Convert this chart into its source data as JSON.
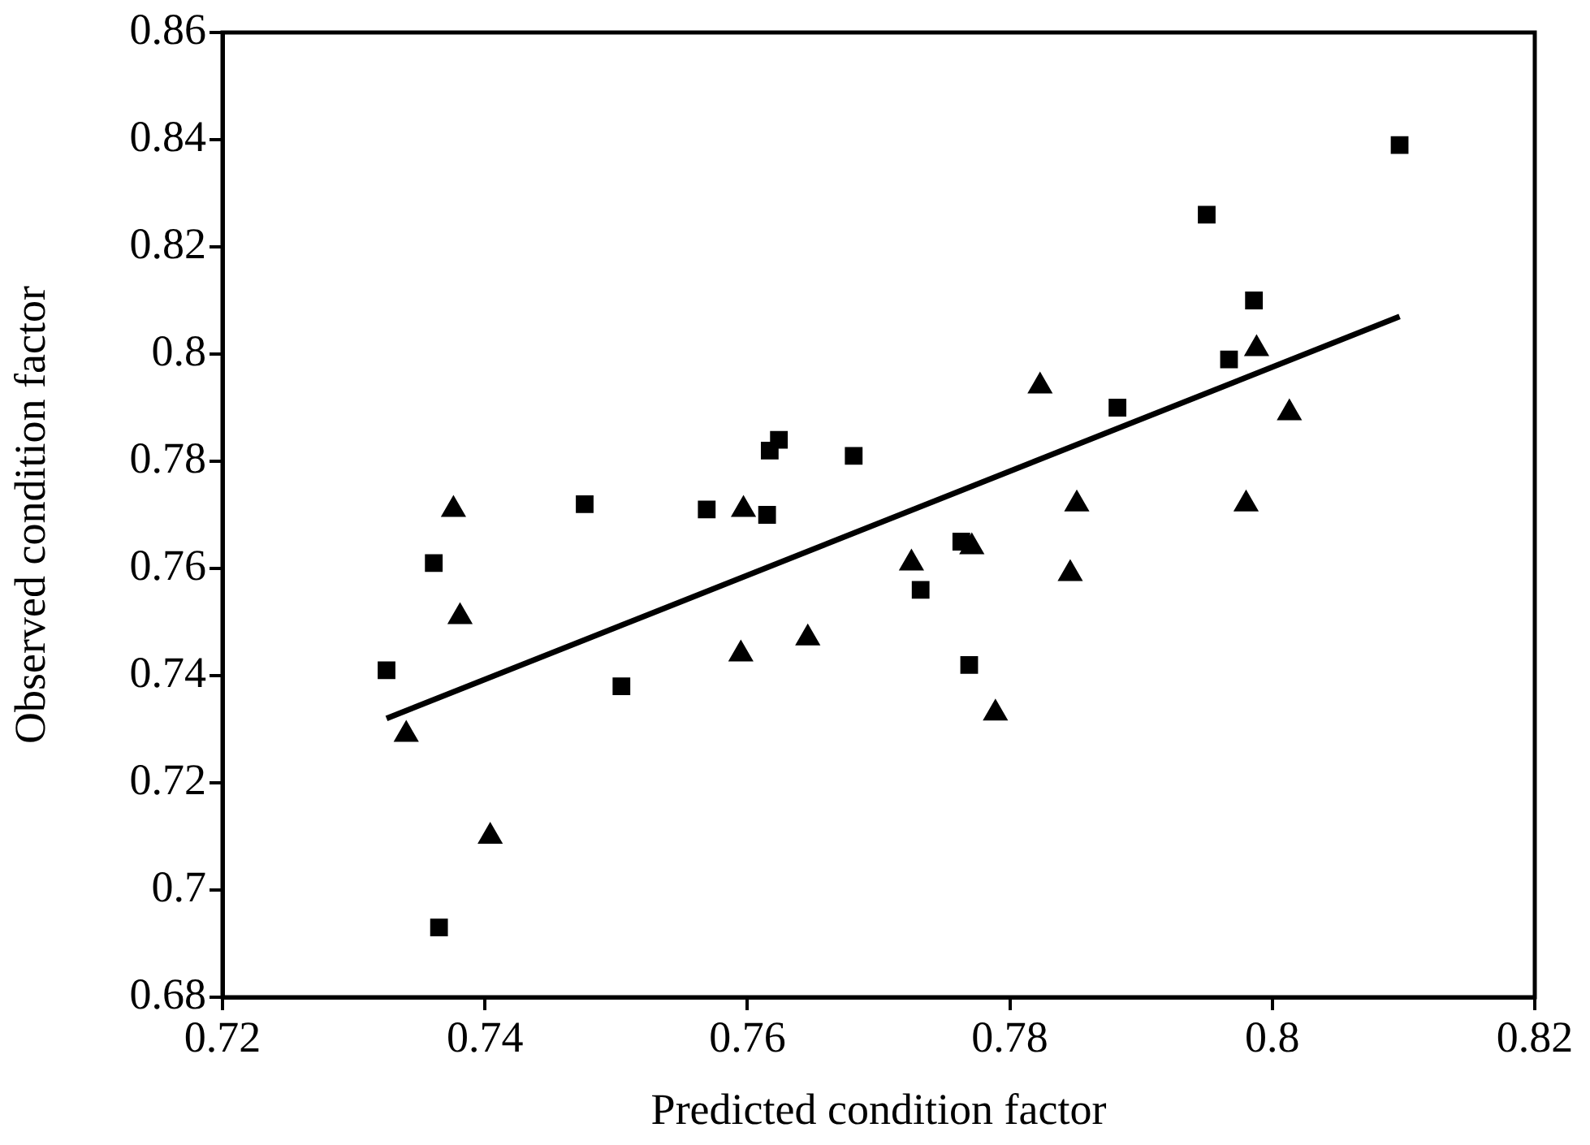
{
  "chart_data": {
    "type": "scatter",
    "xlabel": "Predicted condition factor",
    "ylabel": "Observed condition factor",
    "xlim": [
      0.72,
      0.82
    ],
    "xticks": [
      0.72,
      0.74,
      0.76,
      0.78,
      0.8,
      0.82
    ],
    "ylim": [
      0.68,
      0.86
    ],
    "yticks": [
      0.68,
      0.7,
      0.72,
      0.74,
      0.76,
      0.78,
      0.8,
      0.82,
      0.84,
      0.86
    ],
    "grid": false,
    "legend": false,
    "series": [
      {
        "type": "scatter",
        "marker": "square",
        "color": "#000000",
        "x": [
          0.7325,
          0.7361,
          0.7365,
          0.7476,
          0.7504,
          0.7569,
          0.7615,
          0.7617,
          0.7624,
          0.7681,
          0.7732,
          0.7763,
          0.7769,
          0.7882,
          0.795,
          0.7967,
          0.7986,
          0.8097
        ],
        "values": [
          0.741,
          0.761,
          0.693,
          0.772,
          0.738,
          0.771,
          0.77,
          0.782,
          0.784,
          0.781,
          0.756,
          0.765,
          0.742,
          0.79,
          0.826,
          0.799,
          0.81,
          0.839
        ]
      },
      {
        "type": "scatter",
        "marker": "triangle",
        "color": "#000000",
        "x": [
          0.734,
          0.7376,
          0.7381,
          0.7404,
          0.7595,
          0.7597,
          0.7646,
          0.7725,
          0.7771,
          0.7789,
          0.7823,
          0.7846,
          0.7851,
          0.798,
          0.7988,
          0.8013
        ],
        "values": [
          0.729,
          0.771,
          0.751,
          0.71,
          0.744,
          0.771,
          0.747,
          0.761,
          0.764,
          0.733,
          0.794,
          0.759,
          0.772,
          0.772,
          0.801,
          0.789
        ]
      },
      {
        "type": "line",
        "marker": "none",
        "line_style": "solid",
        "color": "#000000",
        "x": [
          0.7325,
          0.8097
        ],
        "values": [
          0.732,
          0.807
        ]
      }
    ]
  }
}
